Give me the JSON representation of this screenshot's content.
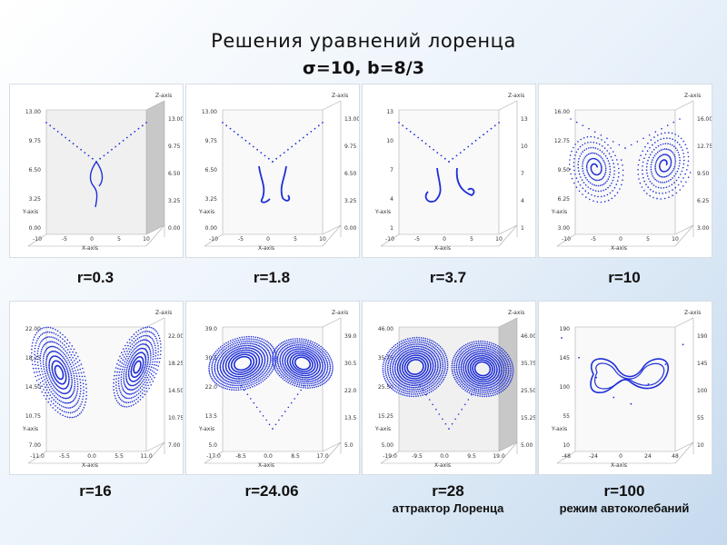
{
  "header": {
    "title_line1": "Решения уравнений лоренца",
    "title_line2": "σ=10, b=8/3"
  },
  "panels": [
    {
      "r_label": "r=0.3",
      "sublabel": "",
      "stage": "tiny",
      "z_ticks": [
        "13.00",
        "9.75",
        "6.50",
        "3.25",
        "0.00"
      ],
      "x_ticks": [
        "-10",
        "-5",
        "0",
        "5",
        "10"
      ]
    },
    {
      "r_label": "r=1.8",
      "sublabel": "",
      "stage": "curl",
      "z_ticks": [
        "13.00",
        "9.75",
        "6.50",
        "3.25",
        "0.00"
      ],
      "x_ticks": [
        "-10",
        "-5",
        "0",
        "5",
        "10"
      ]
    },
    {
      "r_label": "r=3.7",
      "sublabel": "",
      "stage": "curl2",
      "z_ticks": [
        "13",
        "10",
        "7",
        "4",
        "1"
      ],
      "x_ticks": [
        "-10",
        "-5",
        "0",
        "5",
        "10"
      ]
    },
    {
      "r_label": "r=10",
      "sublabel": "",
      "stage": "spiral",
      "z_ticks": [
        "16.00",
        "12.75",
        "9.50",
        "6.25",
        "3.00"
      ],
      "x_ticks": [
        "-10",
        "-5",
        "0",
        "5",
        "10"
      ]
    },
    {
      "r_label": "r=16",
      "sublabel": "",
      "stage": "dense",
      "z_ticks": [
        "22.00",
        "18.25",
        "14.50",
        "10.75",
        "7.00"
      ],
      "x_ticks": [
        "-11.0",
        "-5.5",
        "0.0",
        "5.5",
        "11.0"
      ]
    },
    {
      "r_label": "r=24.06",
      "sublabel": "",
      "stage": "butterfly",
      "z_ticks": [
        "39.0",
        "30.5",
        "22.0",
        "13.5",
        "5.0"
      ],
      "x_ticks": [
        "-17.0",
        "-8.5",
        "0.0",
        "8.5",
        "17.0"
      ]
    },
    {
      "r_label": "r=28",
      "sublabel": "аттрактор Лоренца",
      "stage": "attractor",
      "z_ticks": [
        "46.00",
        "35.75",
        "25.50",
        "15.25",
        "5.00"
      ],
      "x_ticks": [
        "-19.0",
        "-9.5",
        "0.0",
        "9.5",
        "19.0"
      ]
    },
    {
      "r_label": "r=100",
      "sublabel": "режим автоколебаний",
      "stage": "limit",
      "z_ticks": [
        "190",
        "145",
        "100",
        "55",
        "10"
      ],
      "x_ticks": [
        "-48",
        "-24",
        "0",
        "24",
        "48"
      ]
    }
  ],
  "axis_names": {
    "z": "Z-axis",
    "y": "Y-axis",
    "x": "X-axis"
  },
  "colors": {
    "trajectory": "#1f2fd6",
    "box_shade": "#e4e4e4",
    "axis_line": "#aaaaaa"
  }
}
